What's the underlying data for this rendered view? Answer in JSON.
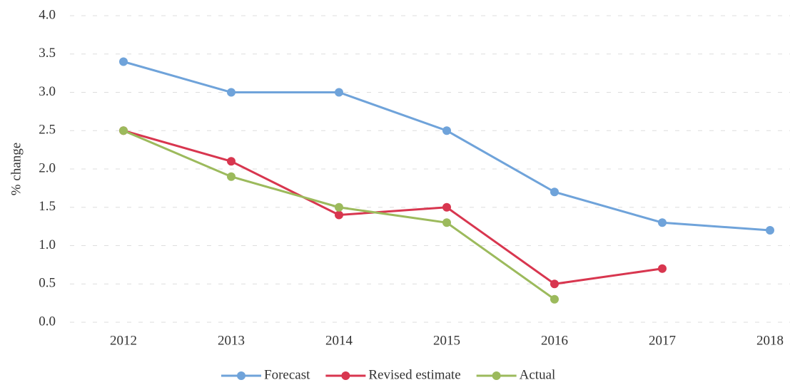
{
  "chart_data": {
    "type": "line",
    "y_label": "% change",
    "categories": [
      "2012",
      "2013",
      "2014",
      "2015",
      "2016",
      "2017",
      "2018"
    ],
    "series": [
      {
        "name": "Forecast",
        "color": "#6fa3da",
        "values": [
          3.4,
          3.0,
          3.0,
          2.5,
          1.7,
          1.3,
          1.2
        ]
      },
      {
        "name": "Revised estimate",
        "color": "#d8364f",
        "values": [
          2.5,
          2.1,
          1.4,
          1.5,
          0.5,
          0.7,
          null
        ]
      },
      {
        "name": "Actual",
        "color": "#9cba5c",
        "values": [
          2.5,
          1.9,
          1.5,
          1.3,
          0.3,
          null,
          null
        ]
      }
    ],
    "ylim": [
      0,
      4
    ],
    "yticks": [
      {
        "value": 0,
        "label": "0.0"
      },
      0.5,
      {
        "value": 1,
        "label": "1.0"
      },
      1.5,
      {
        "value": 2,
        "label": "2.0"
      },
      2.5,
      {
        "value": 3,
        "label": "3.0"
      },
      3.5,
      {
        "value": 4,
        "label": "4.0"
      }
    ],
    "grid": true,
    "legend": "bottom"
  }
}
